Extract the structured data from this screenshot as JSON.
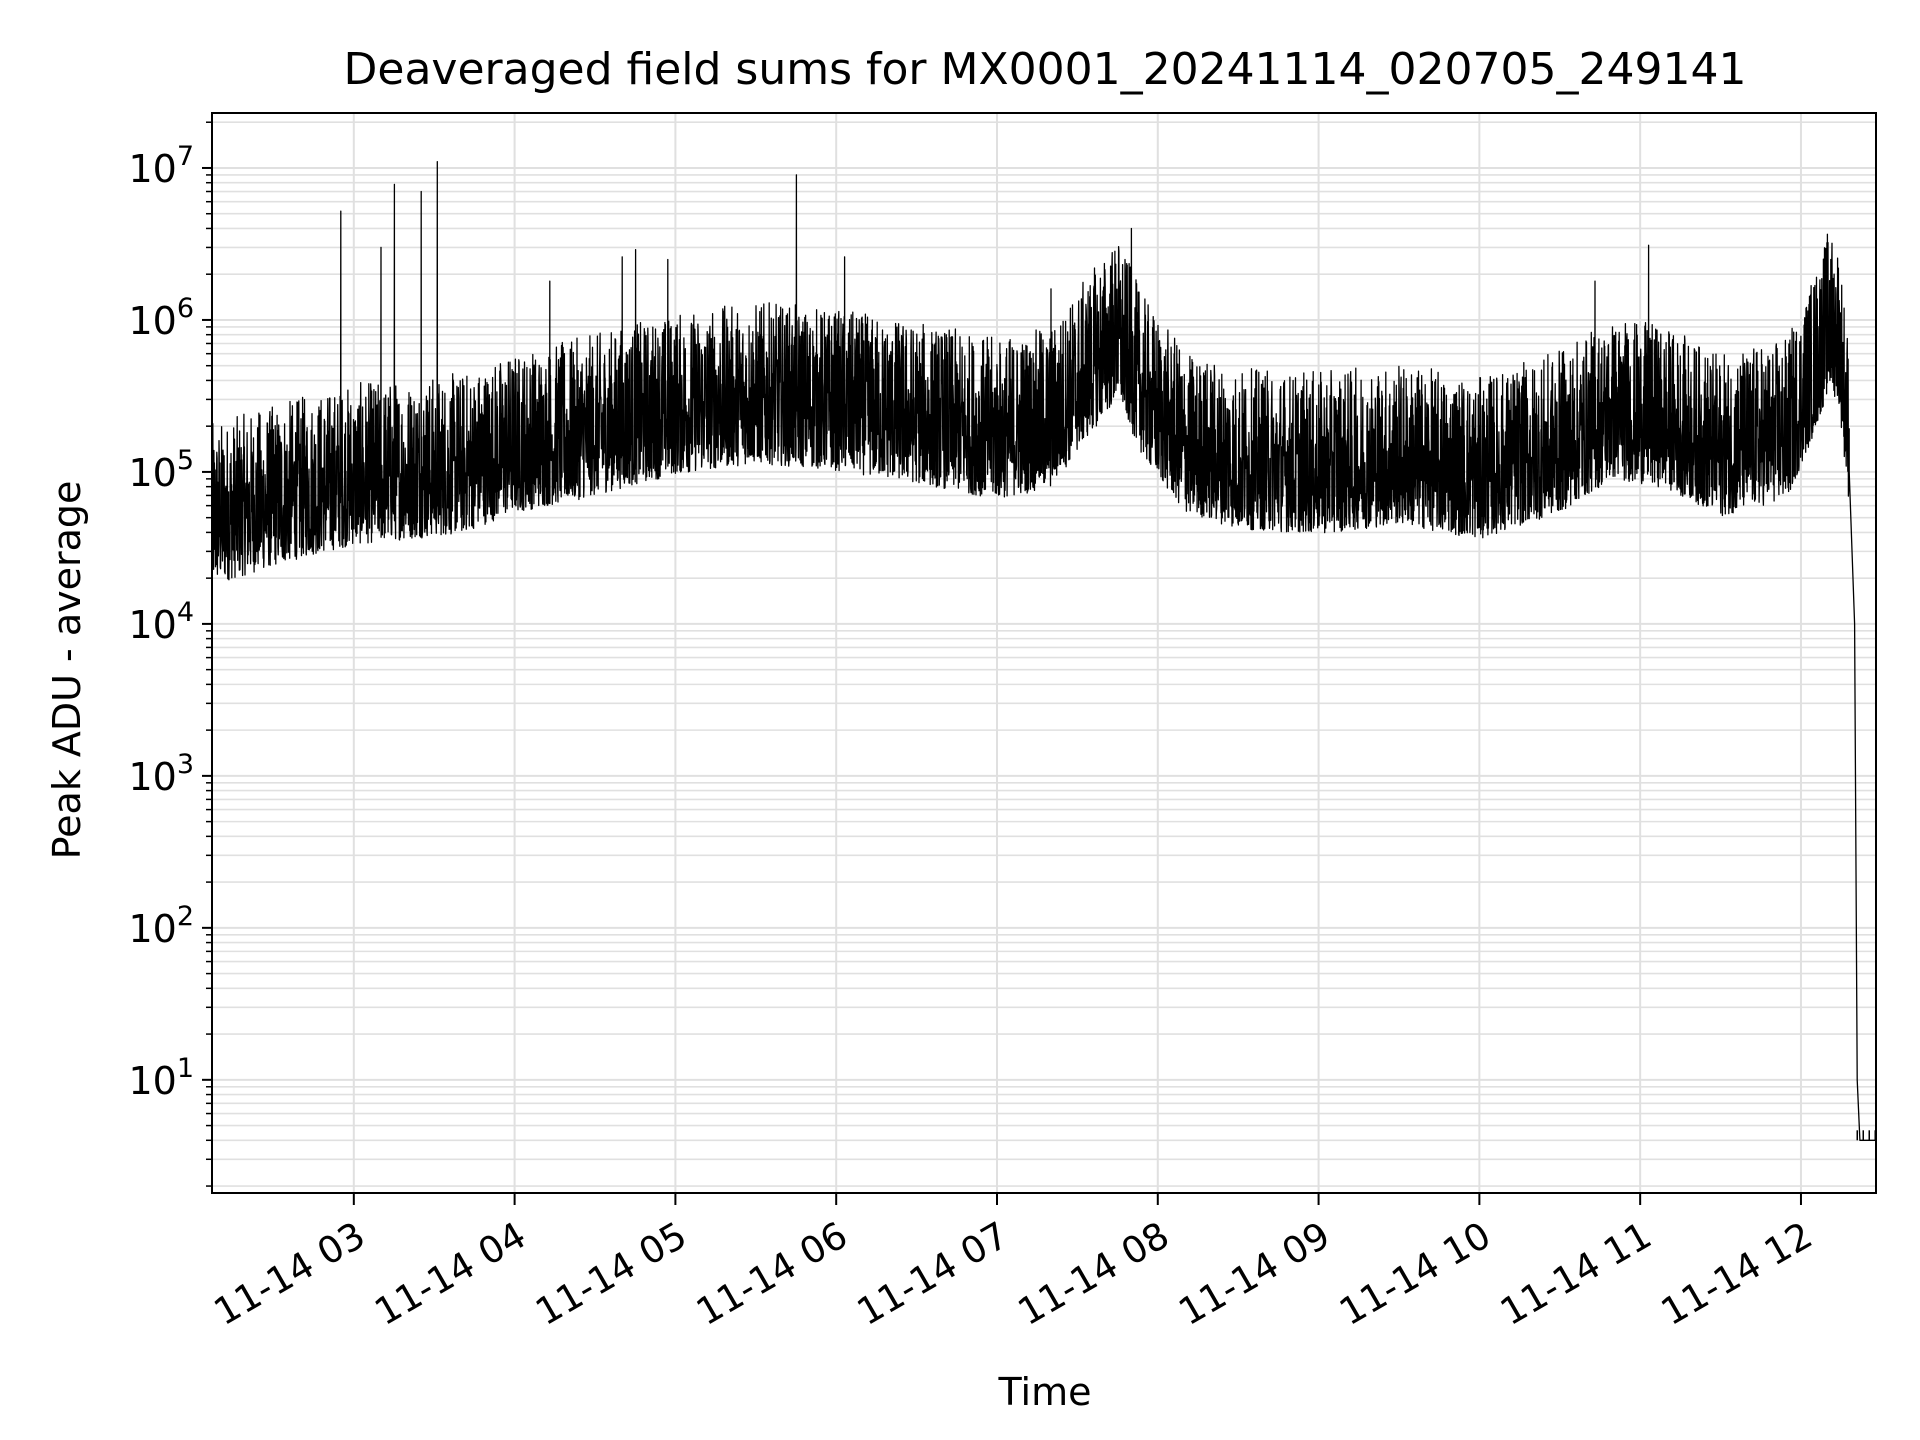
{
  "chart_data": {
    "type": "line",
    "title": "Deaveraged field sums for MX0001_20241114_020705_249141",
    "xlabel": "Time",
    "ylabel": "Peak ADU - average",
    "x_scale": "time",
    "y_scale": "log",
    "grid": true,
    "grid_color": "#e0e0e0",
    "line_color": "#000000",
    "xlim": [
      "2024-11-14 02:07:05",
      "2024-11-14 12:28:00"
    ],
    "ylim": [
      1.8,
      23000000
    ],
    "x_ticks": [
      {
        "value": "2024-11-14 03:00",
        "label": "11-14 03"
      },
      {
        "value": "2024-11-14 04:00",
        "label": "11-14 04"
      },
      {
        "value": "2024-11-14 05:00",
        "label": "11-14 05"
      },
      {
        "value": "2024-11-14 06:00",
        "label": "11-14 06"
      },
      {
        "value": "2024-11-14 07:00",
        "label": "11-14 07"
      },
      {
        "value": "2024-11-14 08:00",
        "label": "11-14 08"
      },
      {
        "value": "2024-11-14 09:00",
        "label": "11-14 09"
      },
      {
        "value": "2024-11-14 10:00",
        "label": "11-14 10"
      },
      {
        "value": "2024-11-14 11:00",
        "label": "11-14 11"
      },
      {
        "value": "2024-11-14 12:00",
        "label": "11-14 12"
      }
    ],
    "y_ticks": [
      {
        "value": 10,
        "base": "10",
        "exp": "1"
      },
      {
        "value": 100,
        "base": "10",
        "exp": "2"
      },
      {
        "value": 1000,
        "base": "10",
        "exp": "3"
      },
      {
        "value": 10000,
        "base": "10",
        "exp": "4"
      },
      {
        "value": 100000,
        "base": "10",
        "exp": "5"
      },
      {
        "value": 1000000,
        "base": "10",
        "exp": "6"
      },
      {
        "value": 10000000,
        "base": "10",
        "exp": "7"
      }
    ],
    "series": [
      {
        "baseline": [
          [
            "2024-11-14 02:07",
            60000
          ],
          [
            "2024-11-14 02:20",
            70000
          ],
          [
            "2024-11-14 02:40",
            90000
          ],
          [
            "2024-11-14 03:00",
            110000
          ],
          [
            "2024-11-14 03:20",
            120000
          ],
          [
            "2024-11-14 03:40",
            130000
          ],
          [
            "2024-11-14 04:00",
            180000
          ],
          [
            "2024-11-14 04:20",
            210000
          ],
          [
            "2024-11-14 04:40",
            260000
          ],
          [
            "2024-11-14 05:00",
            320000
          ],
          [
            "2024-11-14 05:30",
            380000
          ],
          [
            "2024-11-14 06:00",
            340000
          ],
          [
            "2024-11-14 06:30",
            280000
          ],
          [
            "2024-11-14 07:00",
            220000
          ],
          [
            "2024-11-14 07:20",
            260000
          ],
          [
            "2024-11-14 07:35",
            600000
          ],
          [
            "2024-11-14 07:45",
            1000000
          ],
          [
            "2024-11-14 07:55",
            400000
          ],
          [
            "2024-11-14 08:10",
            180000
          ],
          [
            "2024-11-14 08:30",
            140000
          ],
          [
            "2024-11-14 09:00",
            130000
          ],
          [
            "2024-11-14 09:30",
            150000
          ],
          [
            "2024-11-14 10:00",
            120000
          ],
          [
            "2024-11-14 10:30",
            180000
          ],
          [
            "2024-11-14 10:50",
            300000
          ],
          [
            "2024-11-14 11:10",
            260000
          ],
          [
            "2024-11-14 11:30",
            170000
          ],
          [
            "2024-11-14 11:55",
            220000
          ],
          [
            "2024-11-14 12:05",
            600000
          ],
          [
            "2024-11-14 12:10",
            1100000
          ],
          [
            "2024-11-14 12:14",
            1000000
          ],
          [
            "2024-11-14 12:18",
            200000
          ]
        ],
        "dropoff": [
          [
            "2024-11-14 12:18",
            100000
          ],
          [
            "2024-11-14 12:20",
            10000
          ],
          [
            "2024-11-14 12:21",
            10
          ],
          [
            "2024-11-14 12:22",
            4
          ],
          [
            "2024-11-14 12:28",
            4
          ]
        ],
        "spikes": [
          [
            "2024-11-14 02:55",
            5200000
          ],
          [
            "2024-11-14 03:10",
            3000000
          ],
          [
            "2024-11-14 03:15",
            7800000
          ],
          [
            "2024-11-14 03:25",
            7000000
          ],
          [
            "2024-11-14 03:31",
            11000000
          ],
          [
            "2024-11-14 04:13",
            1800000
          ],
          [
            "2024-11-14 04:40",
            2600000
          ],
          [
            "2024-11-14 04:45",
            2900000
          ],
          [
            "2024-11-14 04:57",
            2500000
          ],
          [
            "2024-11-14 05:45",
            9000000
          ],
          [
            "2024-11-14 06:03",
            2600000
          ],
          [
            "2024-11-14 07:20",
            1600000
          ],
          [
            "2024-11-14 07:50",
            4000000
          ],
          [
            "2024-11-14 10:43",
            1800000
          ],
          [
            "2024-11-14 11:03",
            3100000
          ],
          [
            "2024-11-14 12:11",
            2500000
          ]
        ],
        "noise_low": 0.3,
        "noise_high": 3.5
      }
    ]
  }
}
